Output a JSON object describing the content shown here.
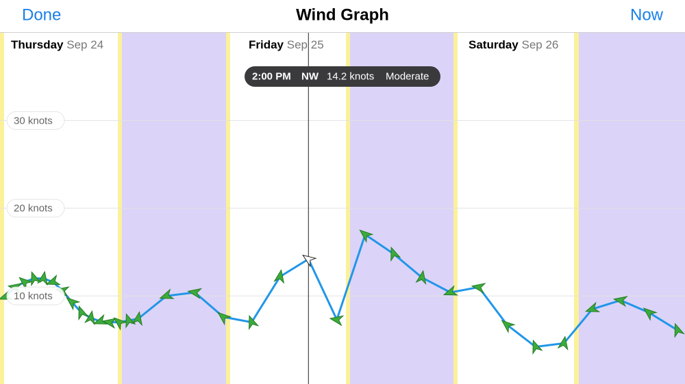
{
  "nav": {
    "left": "Done",
    "title": "Wind Graph",
    "right": "Now"
  },
  "cursor": {
    "time": "2:00 PM",
    "direction": "NW",
    "speed": "14.2 knots",
    "strength": "Moderate"
  },
  "chart_data": {
    "type": "line",
    "day_labels": [
      {
        "day": "Thursday",
        "date": "Sep 24"
      },
      {
        "day": "Friday",
        "date": "Sep 25"
      },
      {
        "day": "Saturday",
        "date": "Sep 26"
      }
    ],
    "x": [
      6,
      7,
      8,
      9,
      10,
      11,
      12,
      13,
      14,
      15,
      16,
      17,
      18,
      19,
      20,
      23,
      26,
      29,
      32,
      35,
      38,
      41,
      44,
      47,
      50,
      53,
      56,
      59,
      62,
      65,
      68,
      71,
      74,
      77
    ],
    "values": [
      9.9,
      11.0,
      11.6,
      12.0,
      12.0,
      11.6,
      10.6,
      9.3,
      8.1,
      7.5,
      7.1,
      7.0,
      7.0,
      7.2,
      7.4,
      10.0,
      10.4,
      7.6,
      7.0,
      12.2,
      14.2,
      7.3,
      17.0,
      14.8,
      12.1,
      10.4,
      11.0,
      6.7,
      4.2,
      4.6,
      8.5,
      9.5,
      8.1,
      6.1
    ],
    "color": "#2196e8",
    "marker_color": "#3cab3c",
    "xlim": [
      5.4,
      77.8
    ],
    "ylim": [
      0,
      40
    ],
    "yticks": [
      {
        "value": 10,
        "label": "10 knots"
      },
      {
        "value": 20,
        "label": "20 knots"
      },
      {
        "value": 30,
        "label": "30 knots"
      }
    ],
    "grid": true
  }
}
